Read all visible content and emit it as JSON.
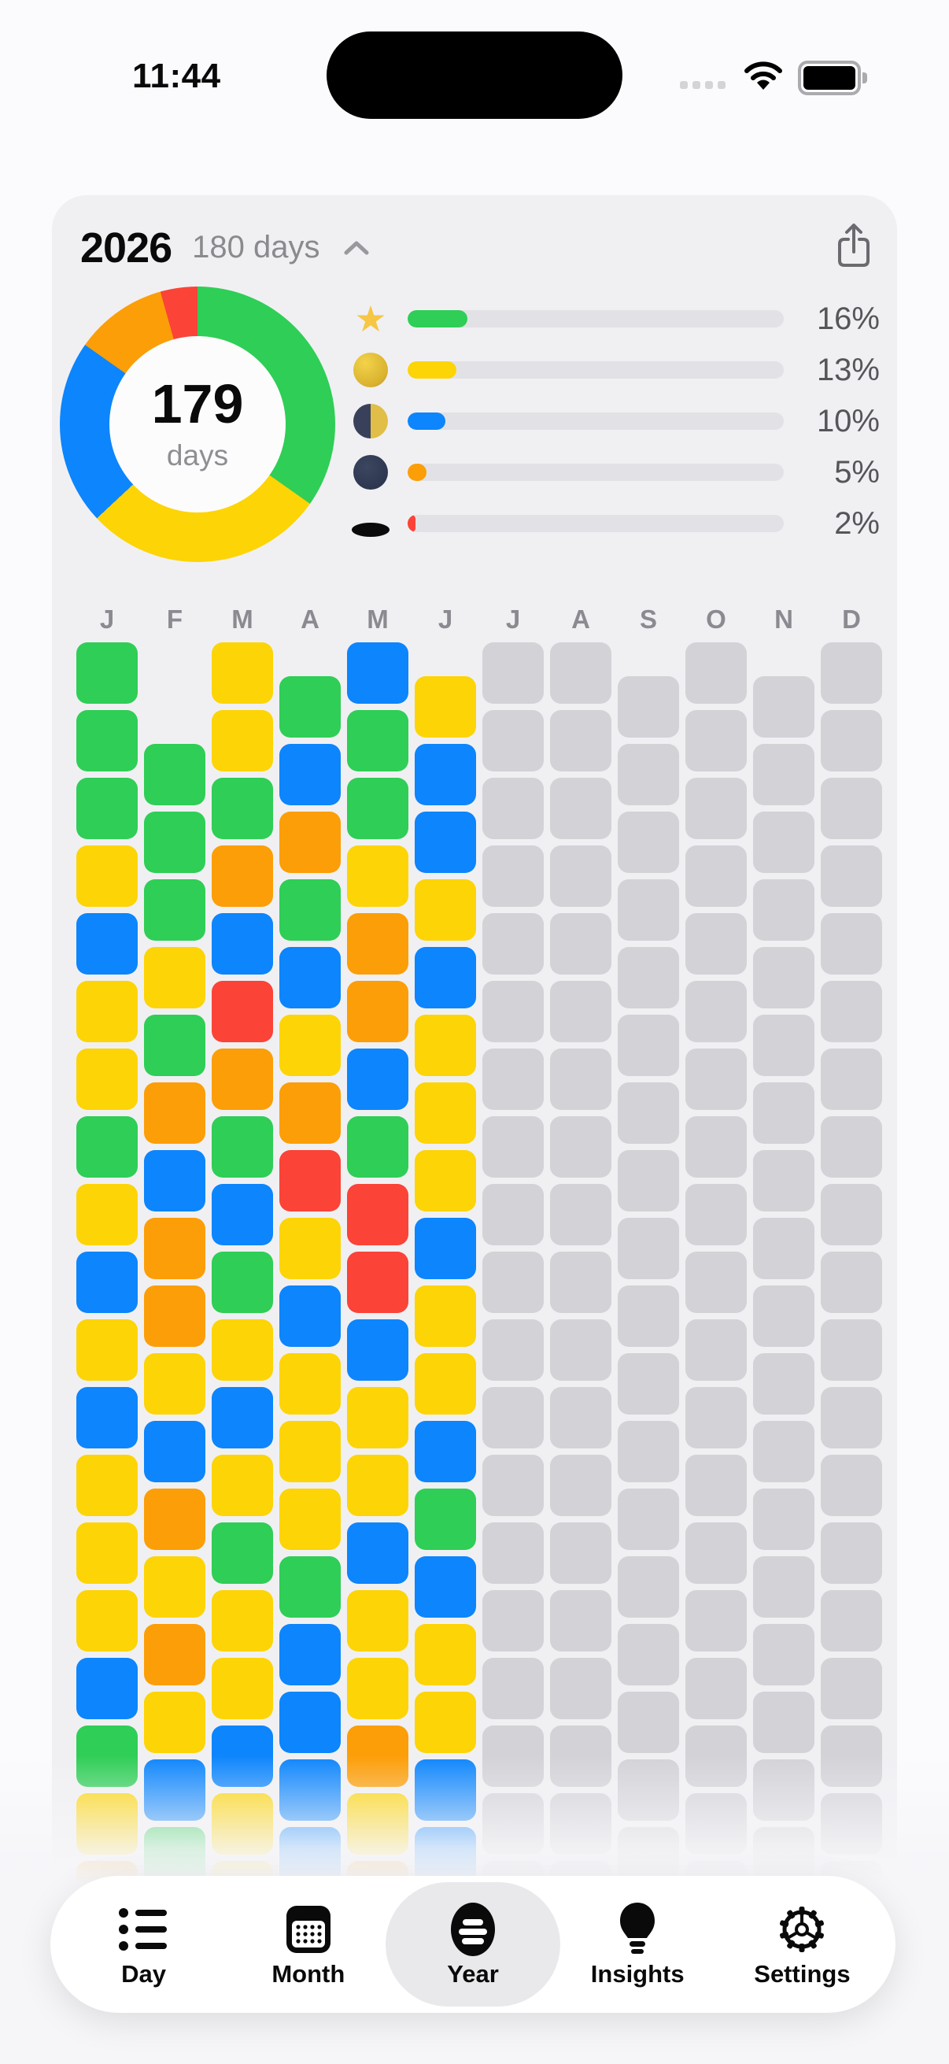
{
  "status_bar": {
    "time": "11:44"
  },
  "header": {
    "year": "2026",
    "period_label": "180 days"
  },
  "summary": {
    "center_value": "179",
    "center_label": "days",
    "legend": [
      {
        "icon": "star",
        "percent": 16,
        "label": "16%",
        "color": "#2FCE56"
      },
      {
        "icon": "full-moon",
        "percent": 13,
        "label": "13%",
        "color": "#FDD405"
      },
      {
        "icon": "half-moon",
        "percent": 10,
        "label": "10%",
        "color": "#0D85FC"
      },
      {
        "icon": "new-moon",
        "percent": 5,
        "label": "5%",
        "color": "#FC9E07"
      },
      {
        "icon": "hole",
        "percent": 2,
        "label": "2%",
        "color": "#FB4337"
      }
    ]
  },
  "chart_data": {
    "type": "pie",
    "labels": [
      "star",
      "full-moon",
      "half-moon",
      "new-moon",
      "hole"
    ],
    "values": [
      16,
      13,
      10,
      5,
      2
    ],
    "colors": [
      "#2FCE56",
      "#FDD405",
      "#0D85FC",
      "#FC9E07",
      "#FB4337"
    ],
    "center_text": "179 days",
    "legend_position": "right"
  },
  "calendar": {
    "month_labels": [
      "J",
      "F",
      "M",
      "A",
      "M",
      "J",
      "J",
      "A",
      "S",
      "O",
      "N",
      "D"
    ],
    "color_key": {
      "G": "#2FCE56",
      "Y": "#FDD405",
      "B": "#0D85FC",
      "O": "#FC9E07",
      "R": "#FB4337",
      "X": "#D2D2D7"
    },
    "columns": [
      {
        "month": "Jan",
        "offset_rows": 0,
        "cells": [
          "G",
          "G",
          "G",
          "Y",
          "B",
          "Y",
          "Y",
          "G",
          "Y",
          "B",
          "Y",
          "B",
          "Y",
          "Y",
          "Y",
          "B",
          "G",
          "Y",
          "O"
        ]
      },
      {
        "month": "Feb",
        "offset_rows": 1.5,
        "cells": [
          "G",
          "G",
          "G",
          "Y",
          "G",
          "O",
          "B",
          "O",
          "O",
          "Y",
          "B",
          "O",
          "Y",
          "O",
          "Y",
          "B",
          "G"
        ]
      },
      {
        "month": "Mar",
        "offset_rows": 0,
        "cells": [
          "Y",
          "Y",
          "G",
          "O",
          "B",
          "R",
          "O",
          "G",
          "B",
          "G",
          "Y",
          "B",
          "Y",
          "G",
          "Y",
          "Y",
          "B",
          "Y",
          "Y"
        ]
      },
      {
        "month": "Apr",
        "offset_rows": 0.5,
        "cells": [
          "G",
          "B",
          "O",
          "G",
          "B",
          "Y",
          "O",
          "R",
          "Y",
          "B",
          "Y",
          "Y",
          "Y",
          "G",
          "B",
          "B",
          "B",
          "B"
        ]
      },
      {
        "month": "May",
        "offset_rows": 0,
        "cells": [
          "B",
          "G",
          "G",
          "Y",
          "O",
          "O",
          "B",
          "G",
          "R",
          "R",
          "B",
          "Y",
          "Y",
          "B",
          "Y",
          "Y",
          "O",
          "Y",
          "O"
        ]
      },
      {
        "month": "Jun",
        "offset_rows": 0.5,
        "cells": [
          "Y",
          "B",
          "B",
          "Y",
          "B",
          "Y",
          "Y",
          "Y",
          "B",
          "Y",
          "Y",
          "B",
          "G",
          "B",
          "Y",
          "Y",
          "B",
          "B"
        ]
      },
      {
        "month": "Jul",
        "offset_rows": 0,
        "cells": [
          "X",
          "X",
          "X",
          "X",
          "X",
          "X",
          "X",
          "X",
          "X",
          "X",
          "X",
          "X",
          "X",
          "X",
          "X",
          "X",
          "X",
          "X",
          "X"
        ]
      },
      {
        "month": "Aug",
        "offset_rows": 0,
        "cells": [
          "X",
          "X",
          "X",
          "X",
          "X",
          "X",
          "X",
          "X",
          "X",
          "X",
          "X",
          "X",
          "X",
          "X",
          "X",
          "X",
          "X",
          "X",
          "X"
        ]
      },
      {
        "month": "Sep",
        "offset_rows": 0.5,
        "cells": [
          "X",
          "X",
          "X",
          "X",
          "X",
          "X",
          "X",
          "X",
          "X",
          "X",
          "X",
          "X",
          "X",
          "X",
          "X",
          "X",
          "X",
          "X"
        ]
      },
      {
        "month": "Oct",
        "offset_rows": 0,
        "cells": [
          "X",
          "X",
          "X",
          "X",
          "X",
          "X",
          "X",
          "X",
          "X",
          "X",
          "X",
          "X",
          "X",
          "X",
          "X",
          "X",
          "X",
          "X",
          "X"
        ]
      },
      {
        "month": "Nov",
        "offset_rows": 0.5,
        "cells": [
          "X",
          "X",
          "X",
          "X",
          "X",
          "X",
          "X",
          "X",
          "X",
          "X",
          "X",
          "X",
          "X",
          "X",
          "X",
          "X",
          "X",
          "X"
        ]
      },
      {
        "month": "Dec",
        "offset_rows": 0,
        "cells": [
          "X",
          "X",
          "X",
          "X",
          "X",
          "X",
          "X",
          "X",
          "X",
          "X",
          "X",
          "X",
          "X",
          "X",
          "X",
          "X",
          "X",
          "X",
          "X"
        ]
      }
    ]
  },
  "tab_bar": {
    "active": "Year",
    "items": [
      {
        "label": "Day",
        "icon": "list"
      },
      {
        "label": "Month",
        "icon": "calendar"
      },
      {
        "label": "Year",
        "icon": "sphere-lines"
      },
      {
        "label": "Insights",
        "icon": "lightbulb"
      },
      {
        "label": "Settings",
        "icon": "gear"
      }
    ]
  },
  "colors": {
    "card_bg": "#F0F0F3",
    "page_bg": "#FBFBFD",
    "bar_track": "#E2E2E6",
    "future_day": "#D2D2D7",
    "text_secondary": "#8A8A8E"
  }
}
